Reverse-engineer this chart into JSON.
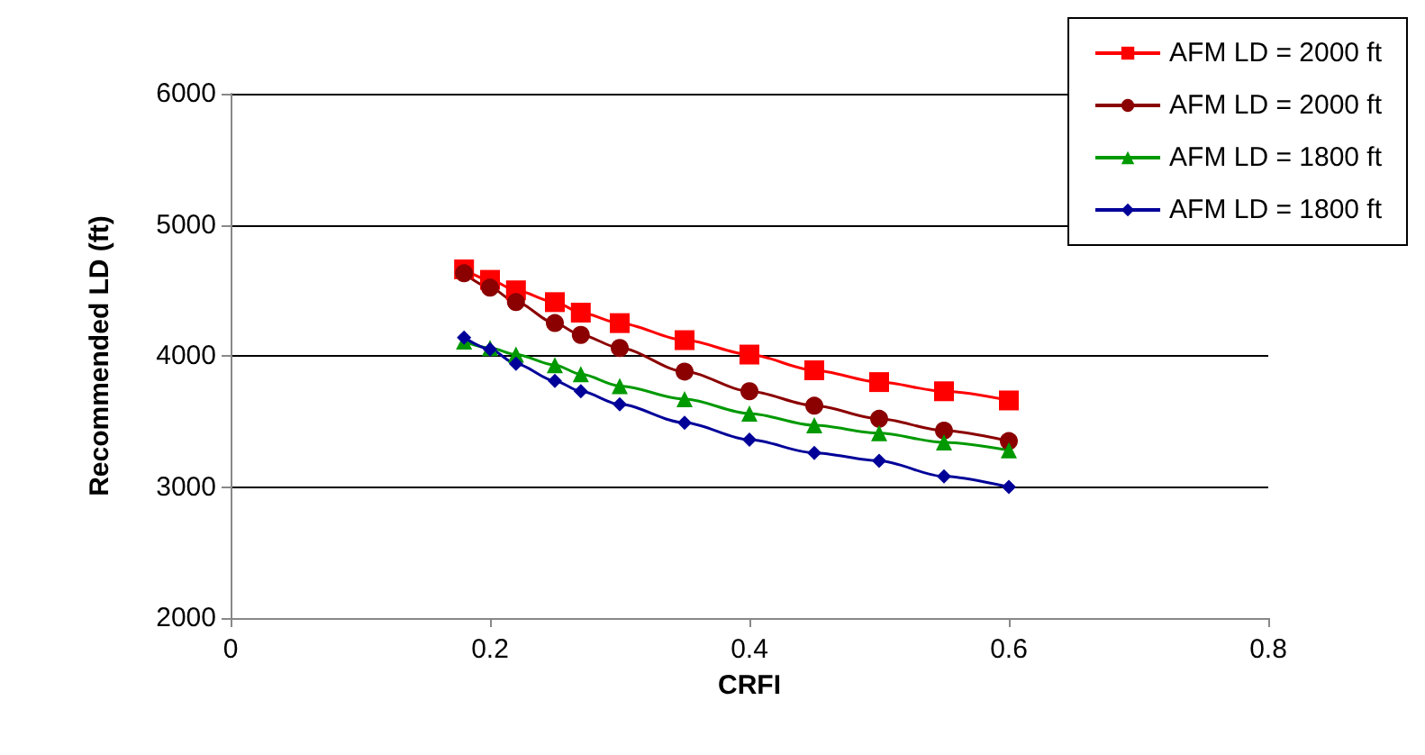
{
  "chart_data": {
    "type": "line",
    "xlabel": "CRFI",
    "ylabel": "Recommended LD (ft)",
    "xlim": [
      0,
      0.8
    ],
    "xticks": [
      0,
      0.2,
      0.4,
      0.6,
      0.8
    ],
    "ylim": [
      2000,
      6000
    ],
    "yticks": [
      2000,
      3000,
      4000,
      5000,
      6000
    ],
    "grid": "y",
    "legend": "top right",
    "x": [
      0.18,
      0.2,
      0.22,
      0.25,
      0.27,
      0.3,
      0.35,
      0.4,
      0.45,
      0.5,
      0.55,
      0.6
    ],
    "series": [
      {
        "name": "AFM LD = 2000 ft",
        "color": "#ff0000",
        "marker": "square",
        "values": [
          4660,
          4580,
          4500,
          4410,
          4330,
          4250,
          4120,
          4010,
          3890,
          3800,
          3730,
          3660
        ]
      },
      {
        "name": "AFM LD = 2000 ft",
        "color": "#8b0000",
        "marker": "circle",
        "values": [
          4630,
          4520,
          4410,
          4250,
          4160,
          4060,
          3880,
          3730,
          3620,
          3520,
          3430,
          3350
        ]
      },
      {
        "name": "AFM LD = 1800 ft",
        "color": "#009900",
        "marker": "triangle",
        "values": [
          4110,
          4060,
          4010,
          3930,
          3860,
          3770,
          3670,
          3560,
          3470,
          3410,
          3340,
          3280
        ]
      },
      {
        "name": "AFM LD = 1800 ft",
        "color": "#000099",
        "marker": "diamond",
        "values": [
          4140,
          4050,
          3940,
          3810,
          3730,
          3630,
          3490,
          3360,
          3260,
          3200,
          3080,
          3000
        ]
      }
    ]
  }
}
